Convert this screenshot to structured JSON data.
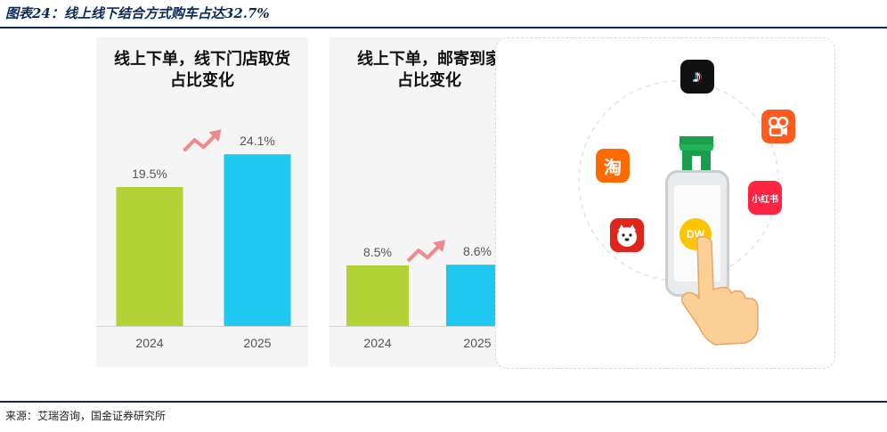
{
  "figure": {
    "title": "图表24：线上线下结合方式购车占达32.7%",
    "source": "来源：艾瑞咨询，国金证券研究所"
  },
  "chart_data": [
    {
      "type": "bar",
      "title": "线上下单，线下门店取货占比变化",
      "categories": [
        "2024",
        "2025"
      ],
      "values": [
        19.5,
        24.1
      ],
      "value_labels": [
        "19.5%",
        "24.1%"
      ],
      "unit": "%",
      "colors": [
        "#b2d235",
        "#1ec8f0"
      ],
      "ylim": [
        0,
        30
      ],
      "grid": false,
      "trend_arrow": "up"
    },
    {
      "type": "bar",
      "title": "线上下单，邮寄到家占比变化",
      "categories": [
        "2024",
        "2025"
      ],
      "values": [
        8.5,
        8.6
      ],
      "value_labels": [
        "8.5%",
        "8.6%"
      ],
      "unit": "%",
      "colors": [
        "#b2d235",
        "#1ec8f0"
      ],
      "ylim": [
        0,
        30
      ],
      "grid": false,
      "trend_arrow": "up"
    }
  ],
  "illustration": {
    "icons": [
      "tiktok-app-icon",
      "kuaishou-app-icon",
      "taobao-app-icon",
      "xiaohongshu-app-icon",
      "jd-app-icon",
      "store-icon",
      "dewu-app-icon",
      "phone-icon",
      "hand-icon"
    ],
    "taobao_glyph": "淘",
    "xiaohongshu_text": "小红书",
    "dewu_text": "DW"
  }
}
